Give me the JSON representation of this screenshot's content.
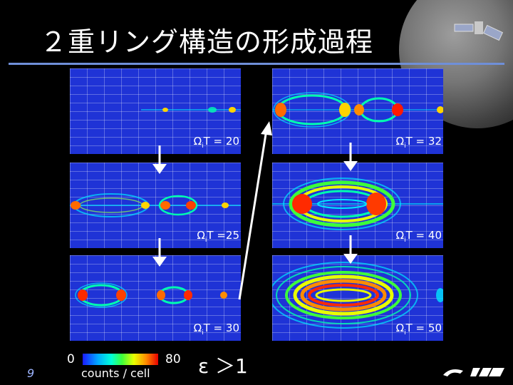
{
  "title": "２重リング構造の形成過程",
  "panels": [
    {
      "id": "p20",
      "time": "20",
      "label_prefix": "Ω",
      "label_sub": "i",
      "label_rest": "T = "
    },
    {
      "id": "p25",
      "time": "25",
      "label_prefix": "Ω",
      "label_sub": "i",
      "label_rest": "T ="
    },
    {
      "id": "p30",
      "time": "30",
      "label_prefix": "Ω",
      "label_sub": "i",
      "label_rest": "T = "
    },
    {
      "id": "p32",
      "time": "32",
      "label_prefix": "Ω",
      "label_sub": "i",
      "label_rest": "T = "
    },
    {
      "id": "p40",
      "time": "40",
      "label_prefix": "Ω",
      "label_sub": "i",
      "label_rest": "T = "
    },
    {
      "id": "p50",
      "time": "50",
      "label_prefix": "Ω",
      "label_sub": "i",
      "label_rest": "T = "
    }
  ],
  "colorbar": {
    "min": "0",
    "max": "80",
    "label": "counts / cell"
  },
  "condition": "ε ＞1",
  "page_number": "9",
  "logos": "ISAS JAXA",
  "colors": {
    "background": "#000000",
    "panel_base": "#1f33d6",
    "rule": "#6f8fd8"
  }
}
